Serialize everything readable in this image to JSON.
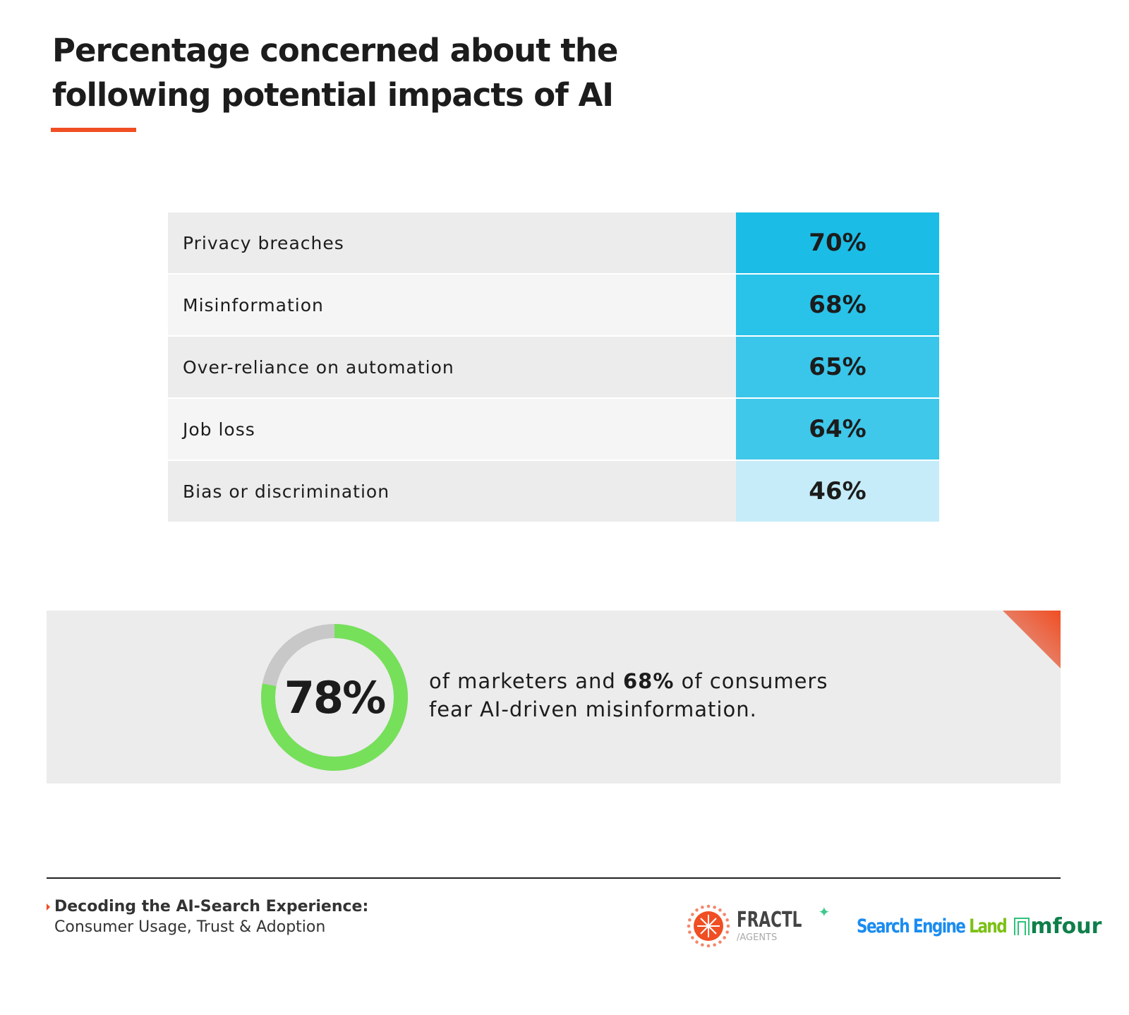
{
  "title": "Percentage concerned about the following potential impacts of AI",
  "chart_data": {
    "type": "table",
    "title": "Percentage concerned about the following potential impacts of AI",
    "categories": [
      "Privacy breaches",
      "Misinformation",
      "Over-reliance on automation",
      "Job loss",
      "Bias or discrimination"
    ],
    "values": [
      70,
      68,
      65,
      64,
      46
    ],
    "value_labels": [
      "70%",
      "68%",
      "65%",
      "64%",
      "46%"
    ],
    "cell_colors": [
      "#1bbde6",
      "#29c2e8",
      "#3ac6ea",
      "#3fc8ea",
      "#c6ecf9"
    ]
  },
  "callout": {
    "donut_value": 78,
    "donut_label": "78%",
    "text_pre": "of marketers and ",
    "text_bold": "68%",
    "text_post": " of consumers fear AI-driven misinformation.",
    "fill_color": "#76e05a",
    "track_color": "#c8c8c8"
  },
  "footer": {
    "title": "Decoding the AI-Search Experience:",
    "subtitle": "Consumer Usage, Trust & Adoption",
    "logos": {
      "fractl": "FRACTL",
      "fractl_sub": "/AGENTS",
      "sel_a": "Search Engine ",
      "sel_b": "Land",
      "mfour": "mfour"
    }
  }
}
